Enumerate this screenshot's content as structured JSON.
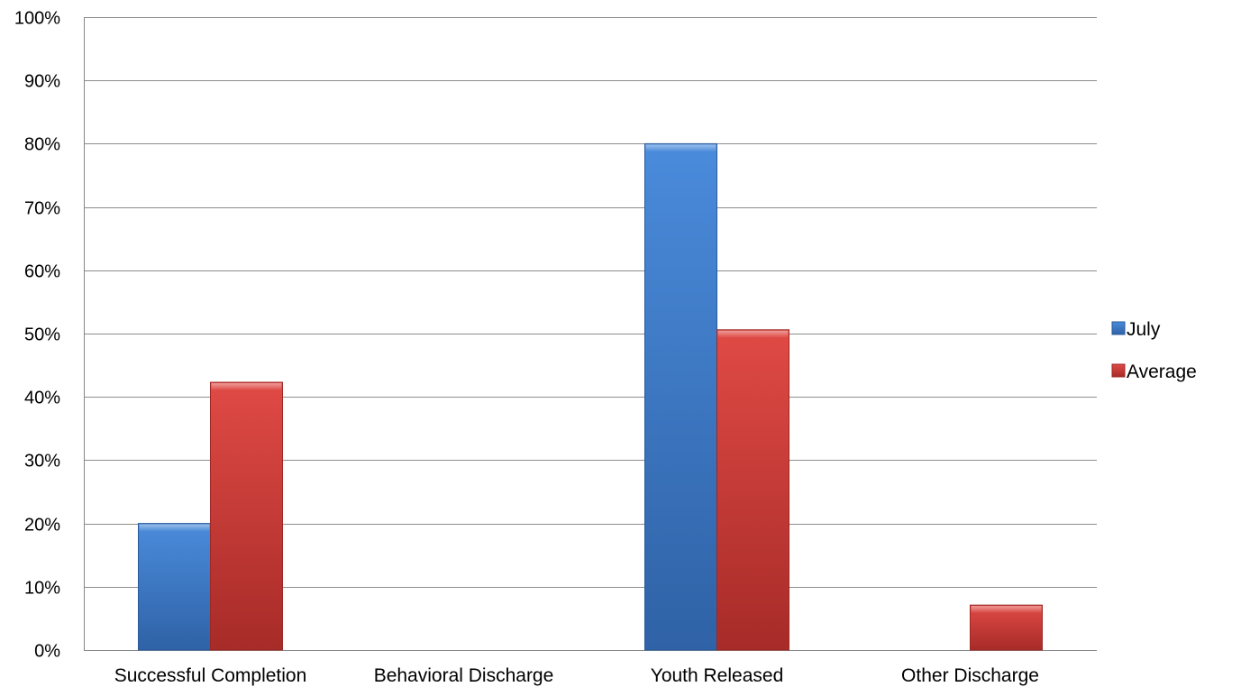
{
  "chart_data": {
    "type": "bar",
    "categories": [
      "Successful Completion",
      "Behavioral Discharge",
      "Youth Released",
      "Other Discharge"
    ],
    "series": [
      {
        "name": "July",
        "values": [
          20,
          0,
          80,
          0
        ],
        "color": "#3E7CC9"
      },
      {
        "name": "Average",
        "values": [
          42.3,
          0,
          50.6,
          7.1
        ],
        "color": "#D43D3A"
      }
    ],
    "ylim": [
      0,
      100
    ],
    "ytick_step": 10,
    "yticks": [
      "0%",
      "10%",
      "20%",
      "30%",
      "40%",
      "50%",
      "60%",
      "70%",
      "80%",
      "90%",
      "100%"
    ],
    "grid": true,
    "legend_position": "right",
    "title": "",
    "xlabel": "",
    "ylabel": ""
  }
}
